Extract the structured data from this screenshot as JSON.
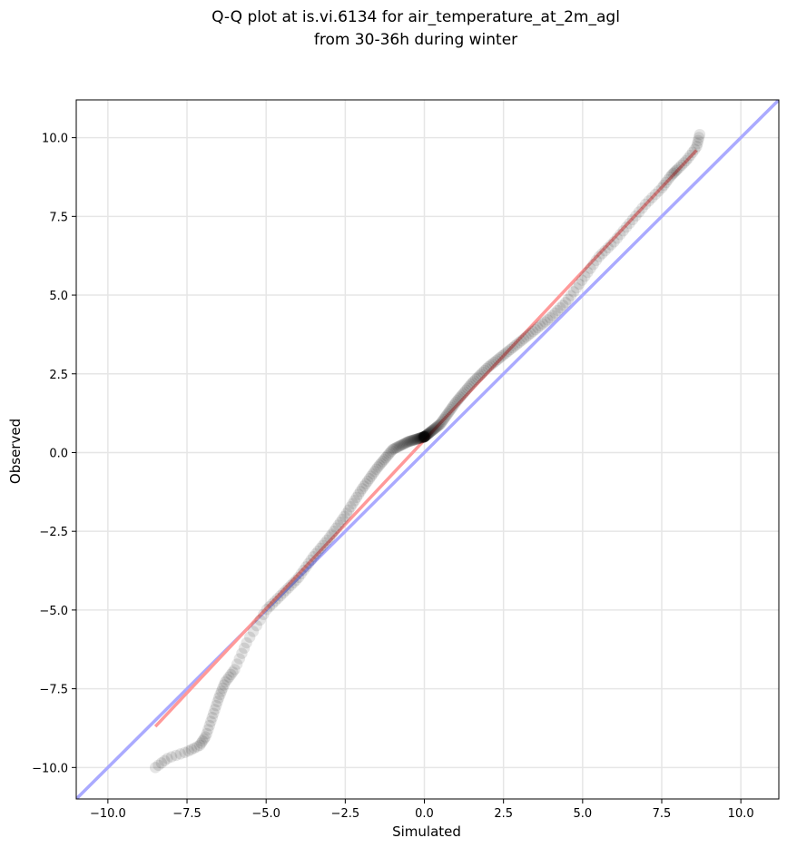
{
  "chart_data": {
    "type": "scatter",
    "title_lines": [
      "Q-Q plot at is.vi.6134 for air_temperature_at_2m_agl",
      "from 30-36h during winter"
    ],
    "xlabel": "Simulated",
    "ylabel": "Observed",
    "xlim": [
      -11.0,
      11.2
    ],
    "ylim": [
      -11.0,
      11.2
    ],
    "xticks": [
      -10.0,
      -7.5,
      -5.0,
      -2.5,
      0.0,
      2.5,
      5.0,
      7.5,
      10.0
    ],
    "yticks": [
      -10.0,
      -7.5,
      -5.0,
      -2.5,
      0.0,
      2.5,
      5.0,
      7.5,
      10.0
    ],
    "tick_labels_x": [
      "−10.0",
      "−7.5",
      "−5.0",
      "−2.5",
      "0.0",
      "2.5",
      "5.0",
      "7.5",
      "10.0"
    ],
    "tick_labels_y": [
      "−10.0",
      "−7.5",
      "−5.0",
      "−2.5",
      "0.0",
      "2.5",
      "5.0",
      "7.5",
      "10.0"
    ],
    "grid": true,
    "colors": {
      "points": "#000000",
      "identity_line": "#aaaaff",
      "fit_line": "#ff9999",
      "grid": "#e6e6e6"
    },
    "quantile_anchors": {
      "x": [
        -8.5,
        -8.1,
        -7.5,
        -7.1,
        -6.9,
        -6.7,
        -6.5,
        -6.3,
        -6.0,
        -5.6,
        -5.0,
        -4.5,
        -4.0,
        -3.5,
        -3.0,
        -2.5,
        -2.0,
        -1.5,
        -1.0,
        -0.5,
        0.0,
        0.5,
        1.0,
        1.5,
        2.0,
        2.5,
        3.0,
        3.5,
        4.0,
        4.5,
        5.0,
        5.5,
        6.0,
        6.5,
        7.0,
        7.5,
        7.8,
        8.0,
        8.3,
        8.6,
        8.7
      ],
      "y": [
        -10.0,
        -9.7,
        -9.5,
        -9.3,
        -9.0,
        -8.4,
        -7.8,
        -7.3,
        -6.9,
        -6.0,
        -5.0,
        -4.5,
        -4.0,
        -3.3,
        -2.7,
        -2.0,
        -1.2,
        -0.5,
        0.1,
        0.35,
        0.5,
        0.9,
        1.6,
        2.2,
        2.7,
        3.1,
        3.5,
        3.9,
        4.3,
        4.8,
        5.5,
        6.2,
        6.7,
        7.3,
        7.9,
        8.4,
        8.8,
        9.0,
        9.3,
        9.7,
        10.1
      ]
    },
    "n_points": 300,
    "identity_line": {
      "x": [
        -11.0,
        11.2
      ],
      "y": [
        -11.0,
        11.2
      ]
    },
    "fit_line": {
      "x": [
        -8.5,
        8.6
      ],
      "y": [
        -8.7,
        9.6
      ]
    }
  }
}
